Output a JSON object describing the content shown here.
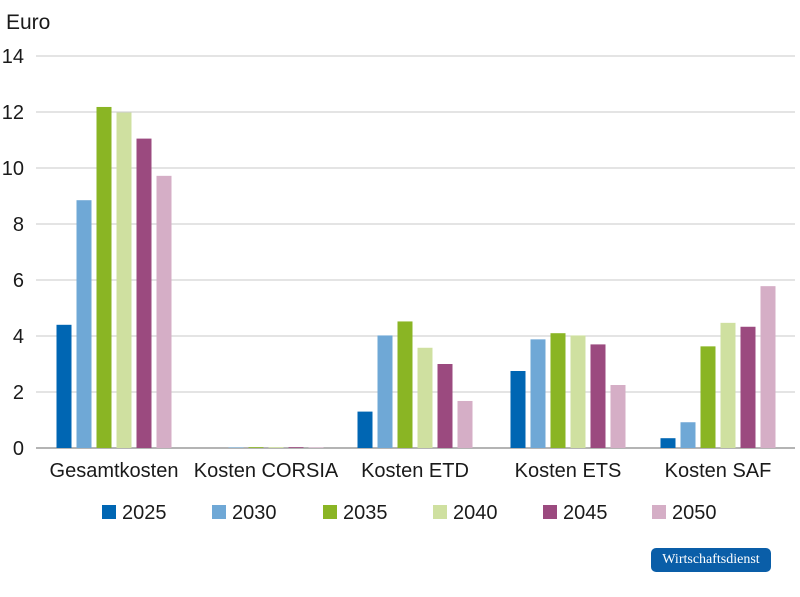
{
  "chart_data": {
    "type": "bar",
    "ylabel": "Euro",
    "ylim": [
      0,
      14
    ],
    "yticks": [
      0,
      2,
      4,
      6,
      8,
      10,
      12,
      14
    ],
    "grid": true,
    "legend_position": "bottom",
    "categories": [
      "Gesamtkosten",
      "Kosten CORSIA",
      "Kosten ETD",
      "Kosten ETS",
      "Kosten SAF"
    ],
    "series": [
      {
        "name": "2025",
        "color": "#0066b3",
        "values": [
          4.4,
          0.0,
          1.3,
          2.75,
          0.35
        ]
      },
      {
        "name": "2030",
        "color": "#6fa8d6",
        "values": [
          8.85,
          0.02,
          4.02,
          3.88,
          0.92
        ]
      },
      {
        "name": "2035",
        "color": "#8ab524",
        "values": [
          12.18,
          0.03,
          4.52,
          4.1,
          3.63
        ]
      },
      {
        "name": "2040",
        "color": "#cfe0a0",
        "values": [
          11.98,
          0.03,
          3.58,
          4.02,
          4.47
        ]
      },
      {
        "name": "2045",
        "color": "#9b4a7f",
        "values": [
          11.05,
          0.03,
          3.0,
          3.7,
          4.33
        ]
      },
      {
        "name": "2050",
        "color": "#d5aec6",
        "values": [
          9.72,
          0.02,
          1.68,
          2.25,
          5.78
        ]
      }
    ]
  },
  "source_badge": "Wirtschaftsdienst"
}
